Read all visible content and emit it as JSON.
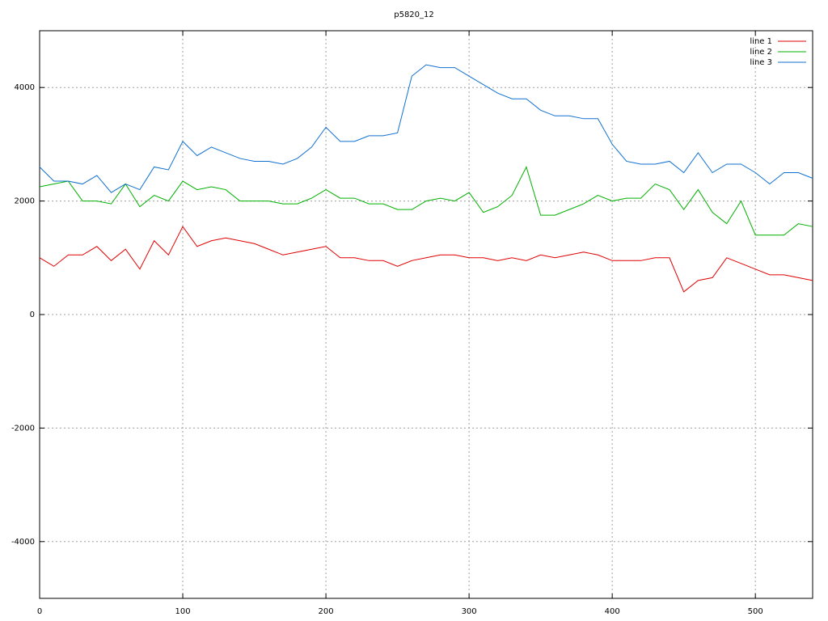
{
  "chart_data": {
    "type": "line",
    "title": "p5820_12",
    "x": [
      0,
      10,
      20,
      30,
      40,
      50,
      60,
      70,
      80,
      90,
      100,
      110,
      120,
      130,
      140,
      150,
      160,
      170,
      180,
      190,
      200,
      210,
      220,
      230,
      240,
      250,
      260,
      270,
      280,
      290,
      300,
      310,
      320,
      330,
      340,
      350,
      360,
      370,
      380,
      390,
      400,
      410,
      420,
      430,
      440,
      450,
      460,
      470,
      480,
      490,
      500,
      510,
      520,
      530,
      540
    ],
    "series": [
      {
        "name": "line 1",
        "color": "#e00000",
        "values": [
          1000,
          850,
          1050,
          1050,
          1200,
          950,
          1150,
          800,
          1300,
          1050,
          1550,
          1200,
          1300,
          1350,
          1300,
          1250,
          1150,
          1050,
          1100,
          1150,
          1200,
          1000,
          1000,
          950,
          950,
          850,
          950,
          1000,
          1050,
          1050,
          1000,
          1000,
          950,
          1000,
          950,
          1050,
          1000,
          1050,
          1100,
          1050,
          950,
          950,
          950,
          1000,
          1000,
          400,
          600,
          650,
          1000,
          900,
          800,
          700,
          700,
          650,
          600
        ]
      },
      {
        "name": "line 2",
        "color": "#00b000",
        "values": [
          2250,
          2300,
          2350,
          2000,
          2000,
          1950,
          2300,
          1900,
          2100,
          2000,
          2350,
          2200,
          2250,
          2200,
          2000,
          2000,
          2000,
          1950,
          1950,
          2050,
          2200,
          2050,
          2050,
          1950,
          1950,
          1850,
          1850,
          2000,
          2050,
          2000,
          2150,
          1800,
          1900,
          2100,
          2600,
          1750,
          1750,
          1850,
          1950,
          2100,
          2000,
          2050,
          2050,
          2300,
          2200,
          1850,
          2200,
          1800,
          1600,
          2000,
          1400,
          1400,
          1400,
          1600,
          1550
        ]
      },
      {
        "name": "line 3",
        "color": "#1070d0",
        "values": [
          2600,
          2350,
          2350,
          2300,
          2450,
          2150,
          2300,
          2200,
          2600,
          2550,
          3050,
          2800,
          2950,
          2850,
          2750,
          2700,
          2700,
          2650,
          2750,
          2950,
          3300,
          3050,
          3050,
          3150,
          3150,
          3200,
          4200,
          4400,
          4350,
          4350,
          4200,
          4050,
          3900,
          3800,
          3800,
          3600,
          3500,
          3500,
          3450,
          3450,
          3000,
          2700,
          2650,
          2650,
          2700,
          2500,
          2850,
          2500,
          2650,
          2650,
          2500,
          2300,
          2500,
          2500,
          2400
        ]
      }
    ],
    "xlim": [
      0,
      540
    ],
    "ylim": [
      -5000,
      5000
    ],
    "xticks": [
      0,
      100,
      200,
      300,
      400,
      500
    ],
    "yticks": [
      -4000,
      -2000,
      0,
      2000,
      4000
    ],
    "grid": true,
    "legend": "top-right"
  }
}
